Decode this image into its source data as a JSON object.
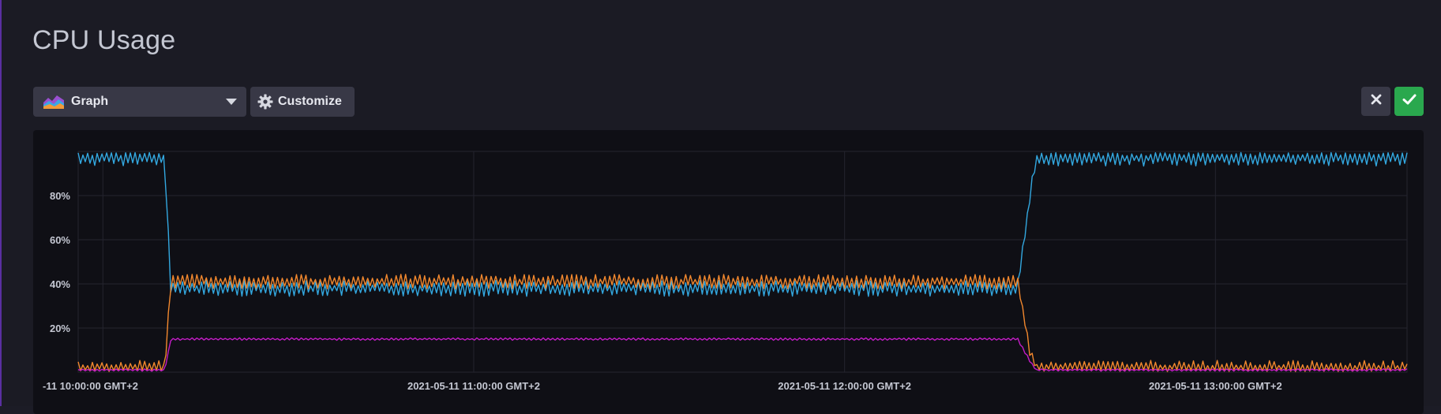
{
  "page": {
    "title": "CPU Usage"
  },
  "toolbar": {
    "graph_type_label": "Graph",
    "customize_label": "Customize",
    "graph_icon": "area-chart-icon",
    "customize_icon": "gear-icon",
    "close_icon": "close-icon",
    "confirm_icon": "check-icon"
  },
  "colors": {
    "background": "#1b1b24",
    "plot_background": "#0f0f15",
    "grid": "#24242e",
    "series_blue": "#33a8e0",
    "series_orange": "#f2882e",
    "series_magenta": "#c31cc6",
    "confirm_green": "#2aa84e"
  },
  "chart_data": {
    "type": "line",
    "title": "",
    "xlabel": "",
    "ylabel": "",
    "ylim": [
      0,
      100
    ],
    "y_ticks": [
      {
        "value": 20,
        "label": "20%"
      },
      {
        "value": 40,
        "label": "40%"
      },
      {
        "value": 60,
        "label": "60%"
      },
      {
        "value": 80,
        "label": "80%"
      }
    ],
    "x_ticks": [
      {
        "value": "2021-05-11 10:00:00",
        "label": "-11 10:00:00 GMT+2"
      },
      {
        "value": "2021-05-11 11:00:00",
        "label": "2021-05-11 11:00:00 GMT+2"
      },
      {
        "value": "2021-05-11 12:00:00",
        "label": "2021-05-11 12:00:00 GMT+2"
      },
      {
        "value": "2021-05-11 13:00:00",
        "label": "2021-05-11 13:00:00 GMT+2"
      }
    ],
    "x_range": [
      "2021-05-11 09:56:00",
      "2021-05-11 13:31:00"
    ],
    "grid": true,
    "legend": "none",
    "series": [
      {
        "color": "#33a8e0",
        "x": [
          "09:56",
          "10:05",
          "10:10",
          "10:11",
          "11:00",
          "12:00",
          "12:28",
          "12:30",
          "12:31",
          "13:00",
          "13:31"
        ],
        "y": [
          97,
          97,
          97,
          38,
          38,
          38,
          38,
          80,
          97,
          97,
          97
        ]
      },
      {
        "color": "#f2882e",
        "x": [
          "09:56",
          "10:05",
          "10:10",
          "10:11",
          "11:00",
          "12:00",
          "12:28",
          "12:30",
          "12:31",
          "13:00",
          "13:31"
        ],
        "y": [
          2,
          2,
          2,
          41,
          41,
          41,
          41,
          10,
          2,
          2,
          2
        ]
      },
      {
        "color": "#c31cc6",
        "x": [
          "09:56",
          "10:05",
          "10:10",
          "10:11",
          "11:00",
          "12:00",
          "12:28",
          "12:30",
          "12:31",
          "13:00",
          "13:31"
        ],
        "y": [
          1,
          1,
          1,
          15,
          15,
          15,
          15,
          5,
          1,
          1,
          1
        ]
      }
    ]
  }
}
